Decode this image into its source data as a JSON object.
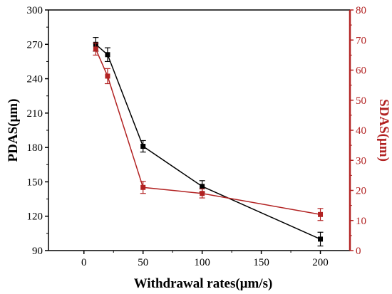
{
  "chart_data": {
    "type": "line",
    "title": "",
    "xlabel": "Withdrawal rates(μm/s)",
    "ylabel": "PDAS(μm)",
    "y2label": "SDAS(μm)",
    "xlim": [
      -30,
      225
    ],
    "ylim": [
      90,
      300
    ],
    "y2lim": [
      0,
      80
    ],
    "x_ticks": [
      0,
      50,
      100,
      150,
      200
    ],
    "y_ticks": [
      90,
      120,
      150,
      180,
      210,
      240,
      270,
      300
    ],
    "y2_ticks": [
      0,
      10,
      20,
      30,
      40,
      50,
      60,
      70,
      80
    ],
    "grid": false,
    "legend": "none",
    "series": [
      {
        "axis": "left",
        "color": "#000000",
        "marker": "square",
        "x": [
          10,
          20,
          50,
          100,
          200
        ],
        "y": [
          270,
          261,
          181,
          146,
          100
        ],
        "err": [
          6,
          6,
          5,
          5,
          6
        ]
      },
      {
        "axis": "right",
        "color": "#b22222",
        "marker": "square",
        "x": [
          10,
          20,
          50,
          100,
          200
        ],
        "y": [
          67,
          58,
          21,
          19,
          12
        ],
        "err": [
          2,
          2.5,
          2,
          1.5,
          2
        ]
      }
    ],
    "left_axis_color": "#000000",
    "right_axis_color": "#b22222"
  }
}
